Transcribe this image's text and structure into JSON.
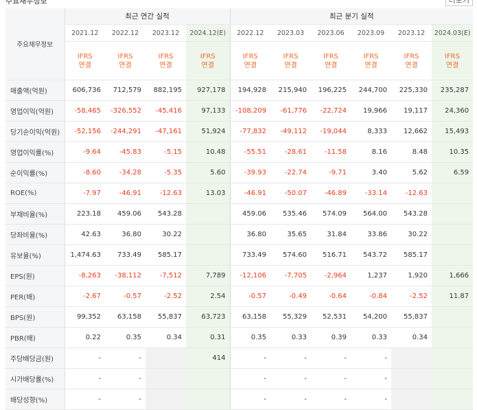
{
  "top": {
    "left_fragment": "주요재무정보",
    "right_fragment": "더보기"
  },
  "header": {
    "label": "주요재무정보",
    "annual_title": "최근 연간 실적",
    "quarterly_title": "최근 분기 실적",
    "periods": [
      "2021.12",
      "2022.12",
      "2023.12",
      "2024.12(E)",
      "2022.12",
      "2023.03",
      "2023.06",
      "2023.09",
      "2023.12",
      "2024.03(E)"
    ],
    "ifrs_line1": "IFRS",
    "ifrs_line2": "연결"
  },
  "rows": [
    {
      "label": "매출액(억원)",
      "values": [
        "606,736",
        "712,579",
        "882,195",
        "927,178",
        "194,928",
        "215,940",
        "196,225",
        "244,700",
        "225,330",
        "235,287"
      ]
    },
    {
      "label": "영업이익(억원)",
      "values": [
        "-58,465",
        "-326,552",
        "-45,416",
        "97,133",
        "-108,209",
        "-61,776",
        "-22,724",
        "19,966",
        "19,117",
        "24,360"
      ]
    },
    {
      "label": "당기순이익(억원)",
      "values": [
        "-52,156",
        "-244,291",
        "-47,161",
        "51,924",
        "-77,832",
        "-49,112",
        "-19,044",
        "8,333",
        "12,662",
        "15,493"
      ]
    },
    {
      "label": "영업이익률(%)",
      "values": [
        "-9.64",
        "-45.83",
        "-5.15",
        "10.48",
        "-55.51",
        "-28.61",
        "-11.58",
        "8.16",
        "8.48",
        "10.35"
      ]
    },
    {
      "label": "순이익률(%)",
      "values": [
        "-8.60",
        "-34.28",
        "-5.35",
        "5.60",
        "-39.93",
        "-22.74",
        "-9.71",
        "3.40",
        "5.62",
        "6.59"
      ]
    },
    {
      "label": "ROE(%)",
      "values": [
        "-7.97",
        "-46.91",
        "-12.63",
        "13.03",
        "-46.91",
        "-50.07",
        "-46.89",
        "-33.14",
        "-12.63",
        ""
      ]
    },
    {
      "label": "부채비율(%)",
      "values": [
        "223.18",
        "459.06",
        "543.28",
        "",
        "459.06",
        "535.46",
        "574.09",
        "564.00",
        "543.28",
        ""
      ]
    },
    {
      "label": "당좌비율(%)",
      "values": [
        "42.63",
        "36.80",
        "30.22",
        "",
        "36.80",
        "35.65",
        "31.84",
        "33.86",
        "30.22",
        ""
      ]
    },
    {
      "label": "유보율(%)",
      "values": [
        "1,474.63",
        "733.49",
        "585.17",
        "",
        "733.49",
        "574.60",
        "516.71",
        "543.72",
        "585.17",
        ""
      ]
    },
    {
      "label": "EPS(원)",
      "values": [
        "-8,263",
        "-38,112",
        "-7,512",
        "7,789",
        "-12,106",
        "-7,705",
        "-2,964",
        "1,237",
        "1,920",
        "1,666"
      ]
    },
    {
      "label": "PER(배)",
      "values": [
        "-2.67",
        "-0.57",
        "-2.52",
        "2.54",
        "-0.57",
        "-0.49",
        "-0.64",
        "-0.84",
        "-2.52",
        "11.87"
      ]
    },
    {
      "label": "BPS(원)",
      "values": [
        "99,352",
        "63,158",
        "55,837",
        "63,723",
        "63,158",
        "55,329",
        "52,531",
        "54,200",
        "55,837",
        ""
      ]
    },
    {
      "label": "PBR(배)",
      "values": [
        "0.22",
        "0.35",
        "0.34",
        "0.31",
        "0.35",
        "0.33",
        "0.39",
        "0.33",
        "0.34",
        ""
      ]
    },
    {
      "label": "주당배당금(원)",
      "values": [
        "-",
        "-",
        "",
        "414",
        "-",
        "-",
        "-",
        "-",
        "",
        ""
      ]
    },
    {
      "label": "시가배당률(%)",
      "values": [
        "-",
        "-",
        "",
        "",
        "-",
        "-",
        "-",
        "-",
        "",
        ""
      ]
    },
    {
      "label": "배당성향(%)",
      "values": [
        "-",
        "-",
        "",
        "",
        "-",
        "-",
        "-",
        "-",
        "",
        ""
      ]
    }
  ],
  "colors": {
    "negative": "#e53b1c",
    "ifrs": "#ec6a2c",
    "estimate_bg": "#eef6ec",
    "label_bg": "#f5f6f8"
  }
}
